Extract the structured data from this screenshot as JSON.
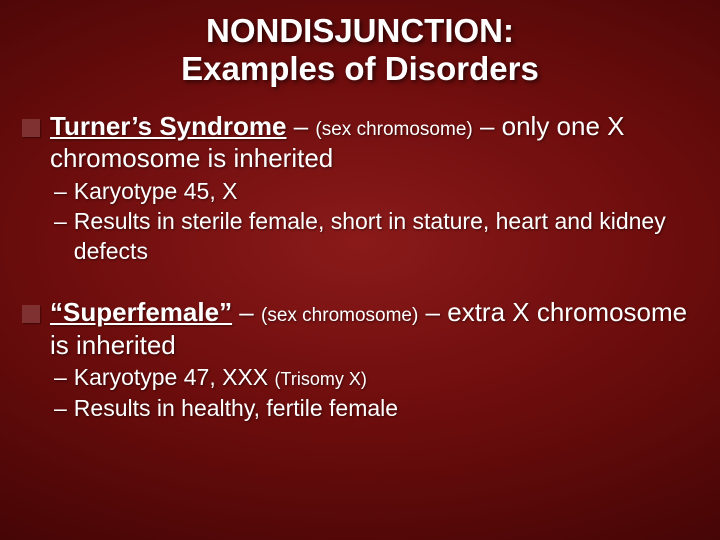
{
  "colors": {
    "text": "#ffffff",
    "bullet_square": "#7f3030",
    "bg_center": "#8a1a1a",
    "bg_edge": "#2e0303"
  },
  "typography": {
    "family": "Verdana",
    "title_fontsize_pt": 25,
    "title_weight": "bold",
    "body_fontsize_pt": 20,
    "note_fontsize_pt": 14,
    "sub_fontsize_pt": 17
  },
  "title": {
    "line1": "NONDISJUNCTION:",
    "line2": "Examples of Disorders"
  },
  "block1": {
    "term": "Turner’s Syndrome",
    "dash1": " – ",
    "note": "(sex chromosome)",
    "rest": " – only one X chromosome is inherited",
    "subs": [
      {
        "dash": "–",
        "text": "Karyotype 45, X"
      },
      {
        "dash": "–",
        "text": "Results in sterile female, short in stature, heart and kidney defects"
      }
    ]
  },
  "block2": {
    "term": "“Superfemale”",
    "dash1": " – ",
    "note": "(sex chromosome)",
    "rest": " – extra X chromosome is inherited",
    "subs": [
      {
        "dash": "–",
        "text_pre": "Karyotype 47, XXX ",
        "note": "(Trisomy X)"
      },
      {
        "dash": "–",
        "text": "Results in healthy, fertile female"
      }
    ]
  }
}
